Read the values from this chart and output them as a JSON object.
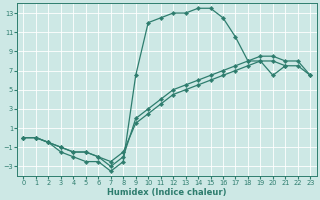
{
  "xlabel": "Humidex (Indice chaleur)",
  "bg_color": "#cde8e5",
  "grid_color": "#ffffff",
  "line_color": "#2e7d6e",
  "xlim": [
    -0.5,
    23.5
  ],
  "ylim": [
    -4,
    14
  ],
  "xticks": [
    0,
    1,
    2,
    3,
    4,
    5,
    6,
    7,
    8,
    9,
    10,
    11,
    12,
    13,
    14,
    15,
    16,
    17,
    18,
    19,
    20,
    21,
    22,
    23
  ],
  "yticks": [
    -3,
    -1,
    1,
    3,
    5,
    7,
    9,
    11,
    13
  ],
  "line1_x": [
    0,
    1,
    2,
    3,
    4,
    5,
    6,
    7,
    8,
    9,
    10,
    11,
    12,
    13,
    14,
    15,
    16,
    17,
    18,
    19,
    20,
    21
  ],
  "line1_y": [
    0,
    0,
    -0.5,
    -1.5,
    -2,
    -2.5,
    -2.5,
    -3.5,
    -2.5,
    6.5,
    12,
    12.5,
    13,
    13,
    13.5,
    13.5,
    12.5,
    10.5,
    8,
    8,
    6.5,
    7.5
  ],
  "line2_x": [
    0,
    1,
    2,
    3,
    4,
    5,
    6,
    7,
    8,
    9,
    10,
    11,
    12,
    13,
    14,
    15,
    16,
    17,
    18,
    19,
    20,
    21,
    22,
    23
  ],
  "line2_y": [
    0,
    0,
    -0.5,
    -1,
    -1.5,
    -1.5,
    -2,
    -2.5,
    -1.5,
    1.5,
    2.5,
    3.5,
    4.5,
    5,
    5.5,
    6,
    6.5,
    7,
    7.5,
    8,
    8,
    7.5,
    7.5,
    6.5
  ],
  "line3_x": [
    0,
    1,
    2,
    3,
    4,
    5,
    6,
    7,
    8,
    9,
    10,
    11,
    12,
    13,
    14,
    15,
    16,
    17,
    18,
    19,
    20,
    21,
    22,
    23
  ],
  "line3_y": [
    0,
    0,
    -0.5,
    -1,
    -1.5,
    -1.5,
    -2,
    -3,
    -2,
    2,
    3,
    4,
    5,
    5.5,
    6,
    6.5,
    7,
    7.5,
    8,
    8.5,
    8.5,
    8,
    8,
    6.5
  ]
}
